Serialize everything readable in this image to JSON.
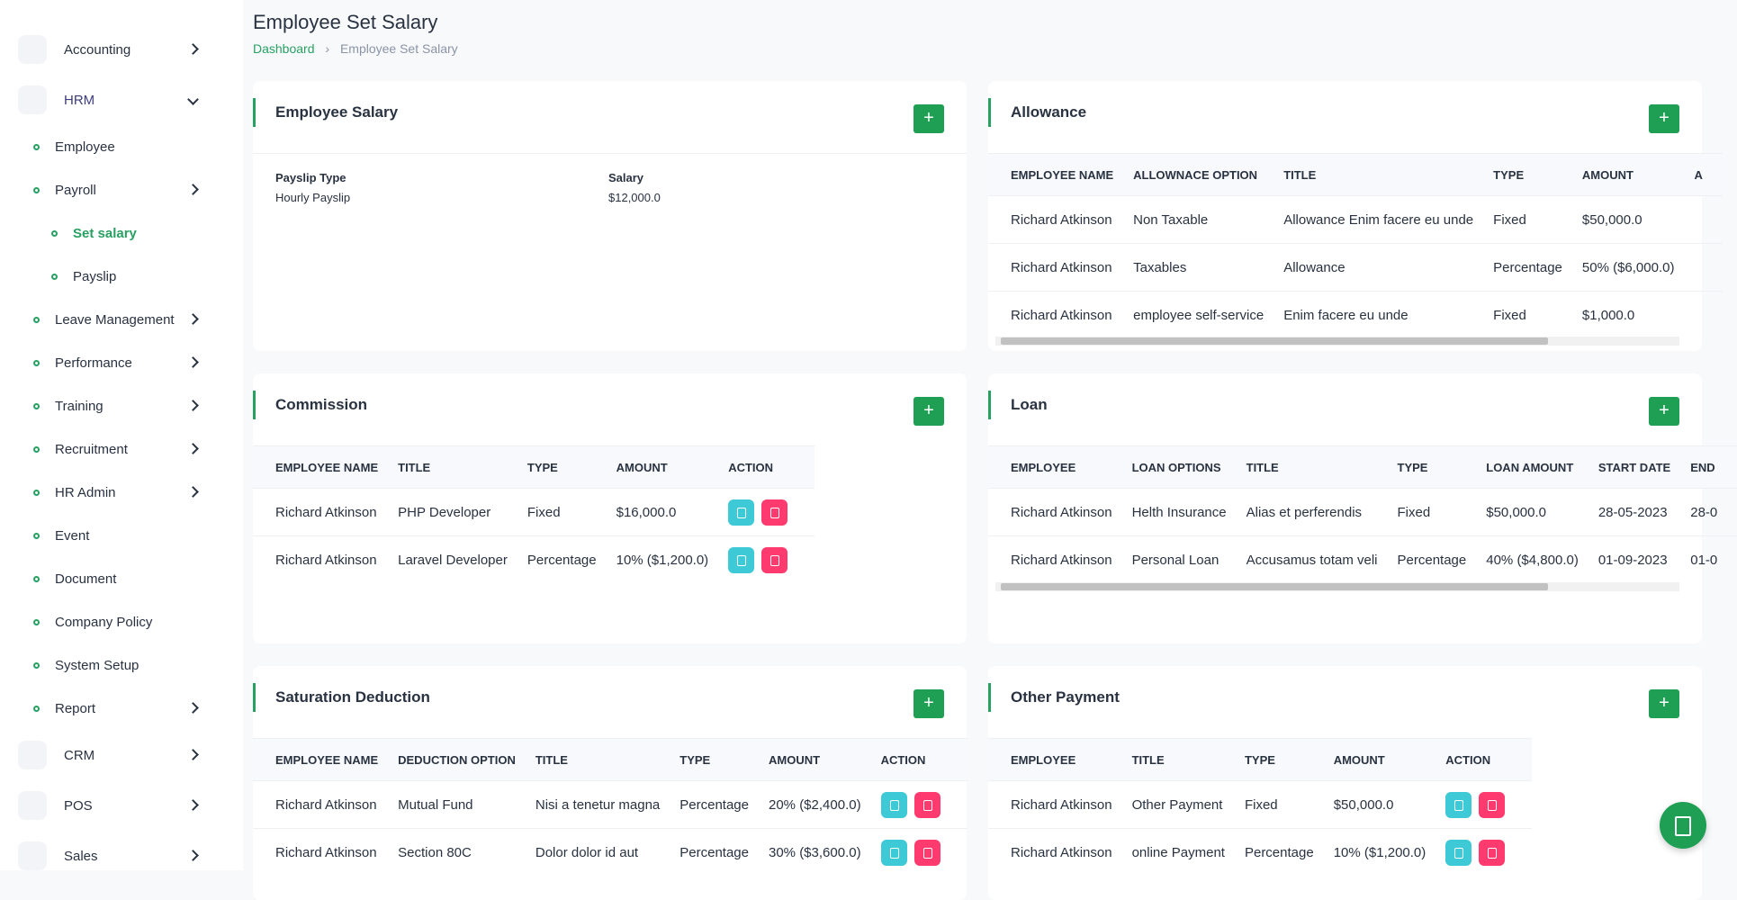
{
  "header": {
    "title": "Employee Set Salary",
    "breadcrumb": [
      "Dashboard",
      "Employee Set Salary"
    ]
  },
  "sidebar": {
    "items": [
      {
        "label": "Accounting",
        "level": 0,
        "arrow": "right"
      },
      {
        "label": "HRM",
        "level": 0,
        "arrow": "down",
        "open": true
      },
      {
        "label": "Employee",
        "level": 1
      },
      {
        "label": "Payroll",
        "level": 1,
        "arrow": "right"
      },
      {
        "label": "Set salary",
        "level": 2,
        "active": true
      },
      {
        "label": "Payslip",
        "level": 2
      },
      {
        "label": "Leave Management",
        "level": 1,
        "arrow": "right"
      },
      {
        "label": "Performance",
        "level": 1,
        "arrow": "right"
      },
      {
        "label": "Training",
        "level": 1,
        "arrow": "right"
      },
      {
        "label": "Recruitment",
        "level": 1,
        "arrow": "right"
      },
      {
        "label": "HR Admin",
        "level": 1,
        "arrow": "right"
      },
      {
        "label": "Event",
        "level": 1
      },
      {
        "label": "Document",
        "level": 1
      },
      {
        "label": "Company Policy",
        "level": 1
      },
      {
        "label": "System Setup",
        "level": 1
      },
      {
        "label": "Report",
        "level": 1,
        "arrow": "right"
      },
      {
        "label": "CRM",
        "level": 0,
        "arrow": "right"
      },
      {
        "label": "POS",
        "level": 0,
        "arrow": "right"
      },
      {
        "label": "Sales",
        "level": 0,
        "arrow": "right"
      }
    ]
  },
  "cards": [
    {
      "title": "Employee Salary",
      "fields": [
        {
          "label": "Payslip Type",
          "value": "Hourly Payslip"
        },
        {
          "label": "Salary",
          "value": "$12,000.0"
        }
      ]
    },
    {
      "title": "Allowance",
      "scroll": true,
      "headers": [
        "EMPLOYEE NAME",
        "ALLOWNACE OPTION",
        "TITLE",
        "TYPE",
        "AMOUNT",
        "A"
      ],
      "rows": [
        [
          "Richard Atkinson",
          "Non Taxable",
          "Allowance Enim facere eu unde",
          "Fixed",
          "$50,000.0"
        ],
        [
          "Richard Atkinson",
          "Taxables",
          "Allowance",
          "Percentage",
          "50% ($6,000.0)"
        ],
        [
          "Richard Atkinson",
          "employee self-service",
          "Enim facere eu unde",
          "Fixed",
          "$1,000.0"
        ]
      ]
    },
    {
      "title": "Commission",
      "actions": true,
      "headers": [
        "EMPLOYEE NAME",
        "TITLE",
        "TYPE",
        "AMOUNT",
        "ACTION"
      ],
      "rows": [
        [
          "Richard Atkinson",
          "PHP Developer",
          "Fixed",
          "$16,000.0"
        ],
        [
          "Richard Atkinson",
          "Laravel Developer",
          "Percentage",
          "10% ($1,200.0)"
        ]
      ]
    },
    {
      "title": "Loan",
      "scroll": true,
      "headers": [
        "EMPLOYEE",
        "LOAN OPTIONS",
        "TITLE",
        "TYPE",
        "LOAN AMOUNT",
        "START DATE",
        "END"
      ],
      "rows": [
        [
          "Richard Atkinson",
          "Helth Insurance",
          "Alias et perferendis",
          "Fixed",
          "$50,000.0",
          "28-05-2023",
          "28-0"
        ],
        [
          "Richard Atkinson",
          "Personal Loan",
          "Accusamus totam veli",
          "Percentage",
          "40% ($4,800.0)",
          "01-09-2023",
          "01-0"
        ]
      ]
    },
    {
      "title": "Saturation Deduction",
      "actions": true,
      "headers": [
        "EMPLOYEE NAME",
        "DEDUCTION OPTION",
        "TITLE",
        "TYPE",
        "AMOUNT",
        "ACTION"
      ],
      "rows": [
        [
          "Richard Atkinson",
          "Mutual Fund",
          "Nisi a tenetur magna",
          "Percentage",
          "20% ($2,400.0)"
        ],
        [
          "Richard Atkinson",
          "Section 80C",
          "Dolor dolor id aut",
          "Percentage",
          "30% ($3,600.0)"
        ]
      ]
    },
    {
      "title": "Other Payment",
      "actions": true,
      "headers": [
        "EMPLOYEE",
        "TITLE",
        "TYPE",
        "AMOUNT",
        "ACTION"
      ],
      "rows": [
        [
          "Richard Atkinson",
          "Other Payment",
          "Fixed",
          "$50,000.0"
        ],
        [
          "Richard Atkinson",
          "online Payment",
          "Percentage",
          "10% ($1,200.0)"
        ]
      ]
    }
  ]
}
